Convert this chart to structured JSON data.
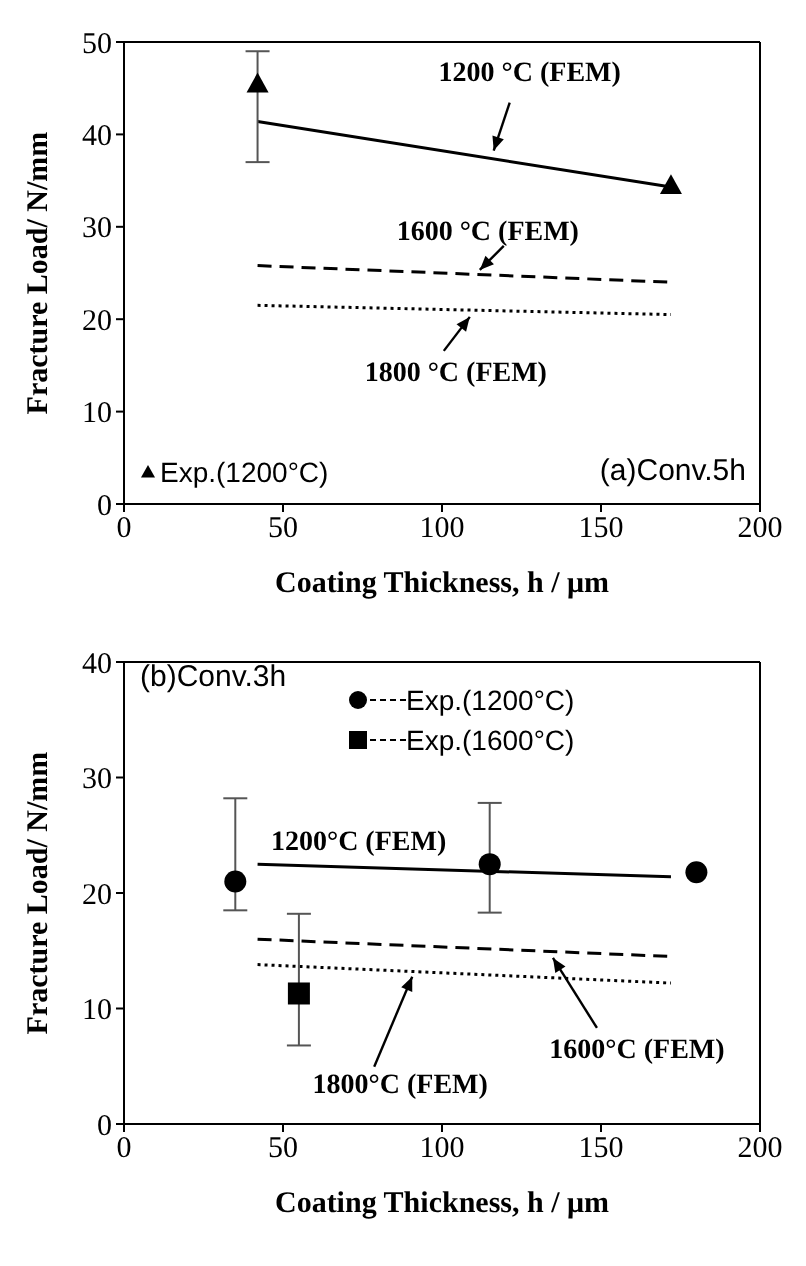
{
  "chart_data": [
    {
      "type": "line",
      "title": "(a)Conv.5h",
      "xlabel": "Coating Thickness, h / μm",
      "ylabel": "Fracture Load/ N/mm",
      "xlim": [
        0,
        200
      ],
      "xticks": [
        0,
        50,
        100,
        150,
        200
      ],
      "ylim": [
        0,
        50
      ],
      "yticks": [
        0,
        10,
        20,
        30,
        40,
        50
      ],
      "grid": false,
      "legend": "bottom left",
      "series": [
        {
          "color": "#000000",
          "line_style": "solid",
          "marker": "none",
          "x": [
            42,
            172
          ],
          "values": [
            41.4,
            34.3
          ]
        },
        {
          "color": "#000000",
          "line_style": "dashed",
          "marker": "none",
          "x": [
            42,
            172
          ],
          "values": [
            25.8,
            24.0
          ]
        },
        {
          "color": "#000000",
          "line_style": "dotted",
          "marker": "none",
          "x": [
            42,
            172
          ],
          "values": [
            21.5,
            20.5
          ]
        },
        {
          "type": "scatter",
          "name": "Exp.(1200°C)",
          "color": "#000000",
          "marker": "triangle",
          "x": [
            42,
            172
          ],
          "values": [
            45.5,
            34.5
          ],
          "errors": [
            [
              37,
              49
            ],
            null
          ]
        }
      ],
      "annotations": [
        {
          "text": "1200 °C (FEM)",
          "x": 115,
          "y": 37.6
        },
        {
          "text": "1600 °C (FEM)",
          "x": 110,
          "y": 24.9
        },
        {
          "text": "1800 °C (FEM)",
          "x": 110,
          "y": 20.9
        }
      ]
    },
    {
      "type": "line",
      "title": "(b)Conv.3h",
      "xlabel": "Coating Thickness, h / μm",
      "ylabel": "Fracture Load/ N/mm",
      "xlim": [
        0,
        200
      ],
      "xticks": [
        0,
        50,
        100,
        150,
        200
      ],
      "ylim": [
        0,
        40
      ],
      "yticks": [
        0,
        10,
        20,
        30,
        40
      ],
      "grid": false,
      "legend": "top",
      "series": [
        {
          "color": "#000000",
          "line_style": "solid",
          "marker": "none",
          "x": [
            42,
            172
          ],
          "values": [
            22.5,
            21.4
          ]
        },
        {
          "color": "#000000",
          "line_style": "dashed",
          "marker": "none",
          "x": [
            42,
            172
          ],
          "values": [
            16.0,
            14.5
          ]
        },
        {
          "color": "#000000",
          "line_style": "dotted",
          "marker": "none",
          "x": [
            42,
            172
          ],
          "values": [
            13.8,
            12.2
          ]
        },
        {
          "type": "scatter",
          "name": "Exp.(1200°C)",
          "color": "#000000",
          "marker": "circle",
          "x": [
            35,
            115,
            180
          ],
          "values": [
            21.0,
            22.5,
            21.8
          ],
          "errors": [
            [
              18.5,
              28.2
            ],
            [
              18.3,
              27.8
            ],
            null
          ]
        },
        {
          "type": "scatter",
          "name": "Exp.(1600°C)",
          "color": "#000000",
          "marker": "square",
          "x": [
            55
          ],
          "values": [
            11.3
          ],
          "errors": [
            [
              6.8,
              18.2
            ]
          ]
        }
      ],
      "annotations": [
        {
          "text": "1200°C (FEM)",
          "x": 70,
          "y": 22.3
        },
        {
          "text": "1600°C (FEM)",
          "x": 133,
          "y": 14.9
        },
        {
          "text": "1800°C (FEM)",
          "x": 90,
          "y": 13.1
        }
      ]
    }
  ]
}
